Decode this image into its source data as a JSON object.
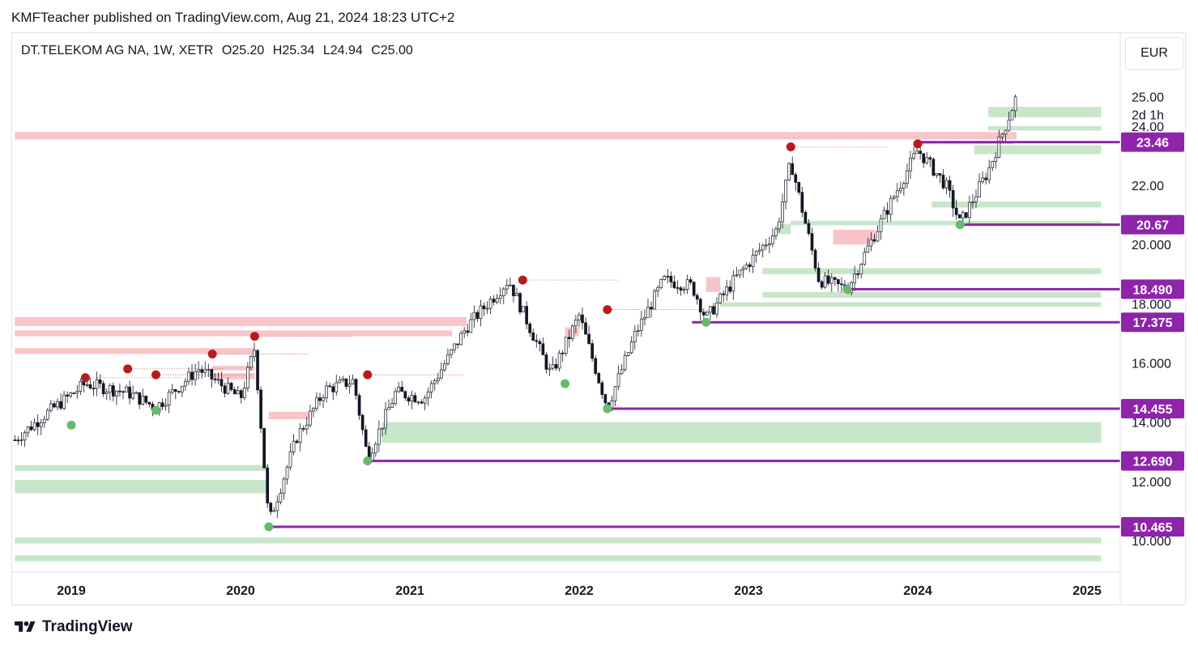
{
  "header": {
    "publisher_line": "KMFTeacher published on TradingView.com, Aug 21, 2024 18:23 UTC+2"
  },
  "legend": {
    "symbol": "DT.TELEKOM AG NA, 1W, XETR",
    "open": "O25.20",
    "high": "H25.34",
    "low": "L24.94",
    "close": "C25.00"
  },
  "currency_button": "EUR",
  "footer": {
    "brand": "TradingView"
  },
  "colors": {
    "demand_zone": "#c8e6c9",
    "supply_zone": "#f8c4c8",
    "level_line": "#8e24aa",
    "swing_high": "#b71c1c",
    "swing_low": "#66bb6a"
  },
  "chart_data": {
    "type": "candlestick",
    "timeframe": "1W",
    "x_ticks": [
      "2019",
      "2020",
      "2021",
      "2022",
      "2023",
      "2024",
      "2025"
    ],
    "y_ticks": [
      "10.000",
      "12.000",
      "14.000",
      "16.000",
      "18.000",
      "20.000",
      "22.00",
      "24.00"
    ],
    "ylim": [
      9.0,
      26.5
    ],
    "last_price": {
      "value": "25.00",
      "countdown": "2d 1h"
    },
    "key_levels": [
      "23.46",
      "20.67",
      "18.490",
      "17.375",
      "14.455",
      "12.690",
      "10.465"
    ],
    "approx_price_path": [
      [
        "2018-09",
        13.4
      ],
      [
        "2018-11",
        14.2
      ],
      [
        "2019-02",
        15.3
      ],
      [
        "2019-05",
        15.0
      ],
      [
        "2019-07",
        14.5
      ],
      [
        "2019-10",
        15.8
      ],
      [
        "2020-01",
        14.8
      ],
      [
        "2020-02",
        16.5
      ],
      [
        "2020-03",
        10.6
      ],
      [
        "2020-05",
        13.5
      ],
      [
        "2020-07",
        15.1
      ],
      [
        "2020-09",
        15.4
      ],
      [
        "2020-10",
        12.8
      ],
      [
        "2020-12",
        15.0
      ],
      [
        "2021-02",
        14.8
      ],
      [
        "2021-05",
        17.2
      ],
      [
        "2021-08",
        18.8
      ],
      [
        "2021-11",
        15.6
      ],
      [
        "2022-01",
        17.6
      ],
      [
        "2022-03",
        14.5
      ],
      [
        "2022-05",
        17.0
      ],
      [
        "2022-07",
        18.8
      ],
      [
        "2022-09",
        18.6
      ],
      [
        "2022-10",
        17.5
      ],
      [
        "2022-12",
        18.8
      ],
      [
        "2023-03",
        20.5
      ],
      [
        "2023-04",
        22.8
      ],
      [
        "2023-06",
        18.8
      ],
      [
        "2023-08",
        18.5
      ],
      [
        "2023-10",
        20.4
      ],
      [
        "2024-01",
        23.2
      ],
      [
        "2024-03",
        22.0
      ],
      [
        "2024-04",
        20.7
      ],
      [
        "2024-06",
        22.5
      ],
      [
        "2024-08",
        25.0
      ]
    ],
    "swing_highs": [
      [
        "2019-02",
        15.5
      ],
      [
        "2019-05",
        15.8
      ],
      [
        "2019-07",
        15.6
      ],
      [
        "2019-11",
        16.3
      ],
      [
        "2020-02",
        16.9
      ],
      [
        "2020-10",
        15.6
      ],
      [
        "2021-09",
        18.8
      ],
      [
        "2022-03",
        17.8
      ],
      [
        "2023-04",
        23.3
      ],
      [
        "2024-01",
        23.4
      ]
    ],
    "swing_lows": [
      [
        "2019-01",
        13.9
      ],
      [
        "2019-07",
        14.4
      ],
      [
        "2020-03",
        10.465
      ],
      [
        "2020-10",
        12.69
      ],
      [
        "2021-12",
        15.3
      ],
      [
        "2022-03",
        14.455
      ],
      [
        "2022-10",
        17.375
      ],
      [
        "2023-08",
        18.49
      ],
      [
        "2024-04",
        20.67
      ]
    ],
    "supply_zones": [
      {
        "from": "2018-09",
        "to": "2024-08",
        "low": 23.55,
        "high": 23.8
      },
      {
        "from": "2018-09",
        "to": "2021-05",
        "low": 17.25,
        "high": 17.55
      },
      {
        "from": "2018-09",
        "to": "2021-04",
        "low": 16.9,
        "high": 17.1
      },
      {
        "from": "2018-09",
        "to": "2020-02",
        "low": 16.3,
        "high": 16.5
      },
      {
        "from": "2019-11",
        "to": "2020-02",
        "low": 15.45,
        "high": 15.65
      },
      {
        "from": "2019-11",
        "to": "2020-02",
        "low": 15.75,
        "high": 15.9
      },
      {
        "from": "2020-03",
        "to": "2020-06",
        "low": 14.1,
        "high": 14.35
      },
      {
        "from": "2021-12",
        "to": "2022-01",
        "low": 16.9,
        "high": 17.2
      },
      {
        "from": "2022-10",
        "to": "2022-11",
        "low": 18.4,
        "high": 18.9
      },
      {
        "from": "2023-07",
        "to": "2023-10",
        "low": 20.0,
        "high": 20.5
      }
    ],
    "demand_zones": [
      {
        "from": "2024-06",
        "to": "2025-02",
        "low": 24.3,
        "high": 24.65
      },
      {
        "from": "2024-06",
        "to": "2025-02",
        "low": 23.85,
        "high": 24.0
      },
      {
        "from": "2024-05",
        "to": "2025-02",
        "low": 23.05,
        "high": 23.35
      },
      {
        "from": "2024-02",
        "to": "2025-02",
        "low": 21.25,
        "high": 21.45
      },
      {
        "from": "2023-04",
        "to": "2025-02",
        "low": 20.65,
        "high": 20.8
      },
      {
        "from": "2023-03",
        "to": "2023-04",
        "low": 20.35,
        "high": 20.7
      },
      {
        "from": "2023-02",
        "to": "2025-02",
        "low": 19.0,
        "high": 19.2
      },
      {
        "from": "2023-02",
        "to": "2025-02",
        "low": 18.2,
        "high": 18.4
      },
      {
        "from": "2022-11",
        "to": "2025-02",
        "low": 17.9,
        "high": 18.05
      },
      {
        "from": "2020-11",
        "to": "2025-02",
        "low": 13.3,
        "high": 14.0
      },
      {
        "from": "2018-09",
        "to": "2020-03",
        "low": 12.35,
        "high": 12.55
      },
      {
        "from": "2018-09",
        "to": "2020-03",
        "low": 11.6,
        "high": 12.05
      },
      {
        "from": "2018-09",
        "to": "2025-02",
        "low": 9.9,
        "high": 10.1
      },
      {
        "from": "2018-09",
        "to": "2025-02",
        "low": 9.3,
        "high": 9.5
      }
    ]
  }
}
